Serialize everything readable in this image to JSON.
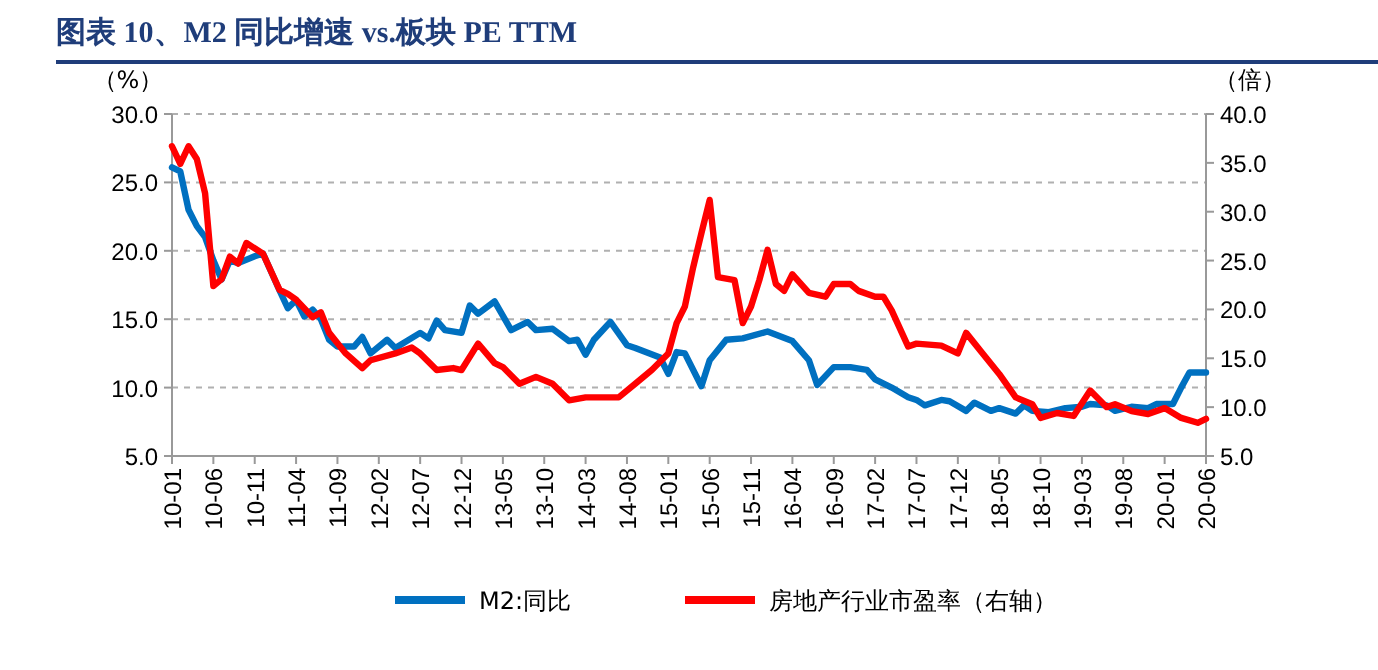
{
  "chart_data": {
    "type": "line",
    "title": "图表 10、M2 同比增速 vs.板块 PE TTM",
    "ylabel": "（%）",
    "y2label": "（倍）",
    "xlim": [
      "2010-01",
      "2020-06"
    ],
    "xticks": [
      {
        "value": "2010-01",
        "label": "10-01"
      },
      {
        "value": "2010-06",
        "label": "10-06"
      },
      {
        "value": "2010-11",
        "label": "10-11"
      },
      {
        "value": "2011-04",
        "label": "11-04"
      },
      {
        "value": "2011-09",
        "label": "11-09"
      },
      {
        "value": "2012-02",
        "label": "12-02"
      },
      {
        "value": "2012-07",
        "label": "12-07"
      },
      {
        "value": "2012-12",
        "label": "12-12"
      },
      {
        "value": "2013-05",
        "label": "13-05"
      },
      {
        "value": "2013-10",
        "label": "13-10"
      },
      {
        "value": "2014-03",
        "label": "14-03"
      },
      {
        "value": "2014-08",
        "label": "14-08"
      },
      {
        "value": "2015-01",
        "label": "15-01"
      },
      {
        "value": "2015-06",
        "label": "15-06"
      },
      {
        "value": "2015-11",
        "label": "15-11"
      },
      {
        "value": "2016-04",
        "label": "16-04"
      },
      {
        "value": "2016-09",
        "label": "16-09"
      },
      {
        "value": "2017-02",
        "label": "17-02"
      },
      {
        "value": "2017-07",
        "label": "17-07"
      },
      {
        "value": "2017-12",
        "label": "17-12"
      },
      {
        "value": "2018-05",
        "label": "18-05"
      },
      {
        "value": "2018-10",
        "label": "18-10"
      },
      {
        "value": "2019-03",
        "label": "19-03"
      },
      {
        "value": "2019-08",
        "label": "19-08"
      },
      {
        "value": "2020-01",
        "label": "20-01"
      },
      {
        "value": "2020-06",
        "label": "20-06"
      }
    ],
    "ylim": [
      5,
      30
    ],
    "yticks": [
      {
        "value": 5,
        "label": "5.0"
      },
      {
        "value": 10,
        "label": "10.0"
      },
      {
        "value": 15,
        "label": "15.0"
      },
      {
        "value": 20,
        "label": "20.0"
      },
      {
        "value": 25,
        "label": "25.0"
      },
      {
        "value": 30,
        "label": "30.0"
      }
    ],
    "y2lim": [
      5,
      40
    ],
    "y2ticks": [
      {
        "value": 5,
        "label": "5.0"
      },
      {
        "value": 10,
        "label": "10.0"
      },
      {
        "value": 15,
        "label": "15.0"
      },
      {
        "value": 20,
        "label": "20.0"
      },
      {
        "value": 25,
        "label": "25.0"
      },
      {
        "value": 30,
        "label": "30.0"
      },
      {
        "value": 35,
        "label": "35.0"
      },
      {
        "value": 40,
        "label": "40.0"
      }
    ],
    "grid": "y",
    "legend": "bottom",
    "line_style": "solid",
    "marker": "none",
    "series": [
      {
        "name": "M2:同比",
        "color": "#0070c0",
        "x": [
          "2010-01",
          "2010-02",
          "2010-03",
          "2010-04",
          "2010-05",
          "2010-06",
          "2010-07",
          "2010-08",
          "2010-09",
          "2010-11",
          "2010-12",
          "2011-02",
          "2011-03",
          "2011-04",
          "2011-05",
          "2011-06",
          "2011-07",
          "2011-08",
          "2011-09",
          "2011-11",
          "2011-12",
          "2012-01",
          "2012-03",
          "2012-04",
          "2012-07",
          "2012-08",
          "2012-09",
          "2012-10",
          "2012-12",
          "2013-01",
          "2013-02",
          "2013-04",
          "2013-06",
          "2013-08",
          "2013-09",
          "2013-11",
          "2014-01",
          "2014-02",
          "2014-03",
          "2014-04",
          "2014-06",
          "2014-08",
          "2014-09",
          "2014-12",
          "2015-01",
          "2015-02",
          "2015-03",
          "2015-05",
          "2015-06",
          "2015-08",
          "2015-10",
          "2016-01",
          "2016-04",
          "2016-06",
          "2016-07",
          "2016-09",
          "2016-11",
          "2017-01",
          "2017-02",
          "2017-04",
          "2017-06",
          "2017-07",
          "2017-08",
          "2017-10",
          "2017-11",
          "2018-01",
          "2018-02",
          "2018-04",
          "2018-05",
          "2018-07",
          "2018-08",
          "2018-09",
          "2018-11",
          "2019-01",
          "2019-03",
          "2019-04",
          "2019-06",
          "2019-07",
          "2019-09",
          "2019-11",
          "2019-12",
          "2020-02",
          "2020-03",
          "2020-04",
          "2020-06"
        ],
        "values": [
          26.1,
          25.8,
          23.0,
          21.8,
          21.0,
          19.3,
          17.9,
          19.3,
          19.1,
          19.6,
          19.8,
          17.1,
          15.8,
          16.4,
          15.2,
          15.7,
          15.0,
          13.5,
          13.0,
          13.0,
          13.7,
          12.5,
          13.5,
          12.9,
          14.0,
          13.6,
          14.9,
          14.2,
          14.0,
          16.0,
          15.4,
          16.3,
          14.2,
          14.8,
          14.2,
          14.3,
          13.4,
          13.5,
          12.4,
          13.5,
          14.8,
          13.1,
          12.9,
          12.2,
          11.0,
          12.6,
          12.5,
          10.1,
          12.0,
          13.5,
          13.6,
          14.1,
          13.4,
          12.0,
          10.2,
          11.5,
          11.5,
          11.3,
          10.6,
          10.0,
          9.3,
          9.1,
          8.7,
          9.1,
          9.0,
          8.3,
          8.9,
          8.3,
          8.5,
          8.1,
          8.7,
          8.3,
          8.2,
          8.5,
          8.6,
          8.8,
          8.7,
          8.3,
          8.6,
          8.5,
          8.8,
          8.8,
          10.0,
          11.1,
          11.1
        ]
      },
      {
        "name": "房地产行业市盈率（右轴）",
        "color": "#ff0000",
        "axis": "y2",
        "x": [
          "2010-01",
          "2010-02",
          "2010-03",
          "2010-04",
          "2010-05",
          "2010-06",
          "2010-07",
          "2010-08",
          "2010-09",
          "2010-10",
          "2010-12",
          "2011-02",
          "2011-03",
          "2011-04",
          "2011-06",
          "2011-07",
          "2011-08",
          "2011-10",
          "2011-12",
          "2012-01",
          "2012-04",
          "2012-06",
          "2012-07",
          "2012-09",
          "2012-11",
          "2012-12",
          "2013-02",
          "2013-04",
          "2013-05",
          "2013-07",
          "2013-09",
          "2013-11",
          "2014-01",
          "2014-03",
          "2014-05",
          "2014-07",
          "2014-09",
          "2014-11",
          "2015-01",
          "2015-02",
          "2015-03",
          "2015-04",
          "2015-05",
          "2015-06",
          "2015-07",
          "2015-09",
          "2015-10",
          "2015-11",
          "2015-12",
          "2016-01",
          "2016-02",
          "2016-03",
          "2016-04",
          "2016-06",
          "2016-08",
          "2016-09",
          "2016-11",
          "2016-12",
          "2017-02",
          "2017-03",
          "2017-04",
          "2017-06",
          "2017-07",
          "2017-10",
          "2017-12",
          "2018-01",
          "2018-03",
          "2018-05",
          "2018-07",
          "2018-09",
          "2018-10",
          "2018-12",
          "2019-02",
          "2019-04",
          "2019-06",
          "2019-07",
          "2019-09",
          "2019-11",
          "2020-01",
          "2020-03",
          "2020-05",
          "2020-06"
        ],
        "values": [
          36.7,
          34.9,
          36.7,
          35.4,
          31.9,
          22.4,
          23.1,
          25.4,
          24.7,
          26.8,
          25.7,
          22.0,
          21.6,
          21.0,
          19.2,
          19.7,
          17.6,
          15.5,
          14.0,
          14.8,
          15.5,
          16.1,
          15.5,
          13.8,
          14.0,
          13.8,
          16.5,
          14.5,
          14.1,
          12.4,
          13.1,
          12.4,
          10.7,
          11.0,
          11.0,
          11.0,
          12.4,
          13.8,
          15.5,
          18.6,
          20.3,
          24.3,
          27.8,
          31.2,
          23.3,
          23.0,
          18.6,
          20.3,
          23.0,
          26.1,
          22.6,
          21.9,
          23.6,
          21.7,
          21.3,
          22.6,
          22.6,
          21.9,
          21.3,
          21.3,
          19.9,
          16.2,
          16.5,
          16.3,
          15.5,
          17.6,
          15.5,
          13.4,
          11.0,
          10.3,
          8.9,
          9.4,
          9.1,
          11.7,
          10.0,
          10.3,
          9.6,
          9.3,
          9.9,
          8.9,
          8.4,
          8.8
        ]
      }
    ]
  }
}
